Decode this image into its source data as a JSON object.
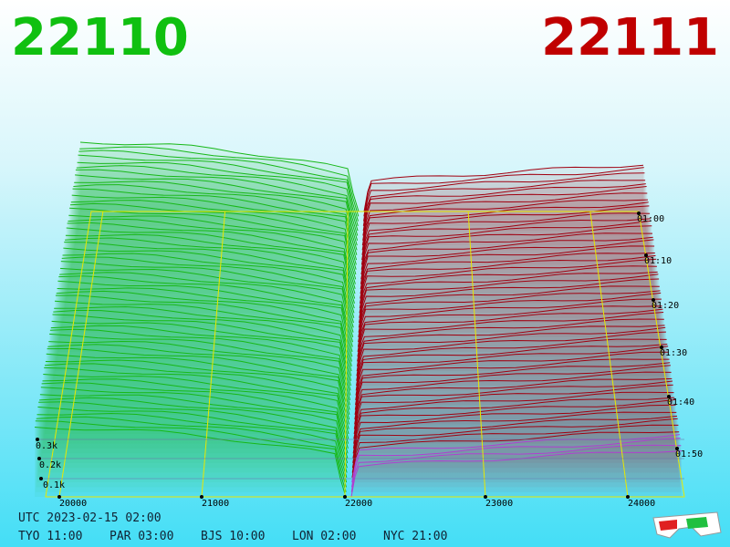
{
  "header": {
    "bid": "22110",
    "ask": "22111"
  },
  "price_axis": [
    "20000",
    "21000",
    "22000",
    "23000",
    "24000"
  ],
  "volume_axis": [
    "0.1k",
    "0.2k",
    "0.3k"
  ],
  "time_axis": [
    "01:00",
    "01:10",
    "01:20",
    "01:30",
    "01:40",
    "01:50"
  ],
  "clock": {
    "utc": "UTC 2023-02-15 02:00",
    "zones": [
      "TYO 11:00",
      "PAR 03:00",
      "BJS 10:00",
      "LON 02:00",
      "NYC 21:00"
    ]
  }
}
